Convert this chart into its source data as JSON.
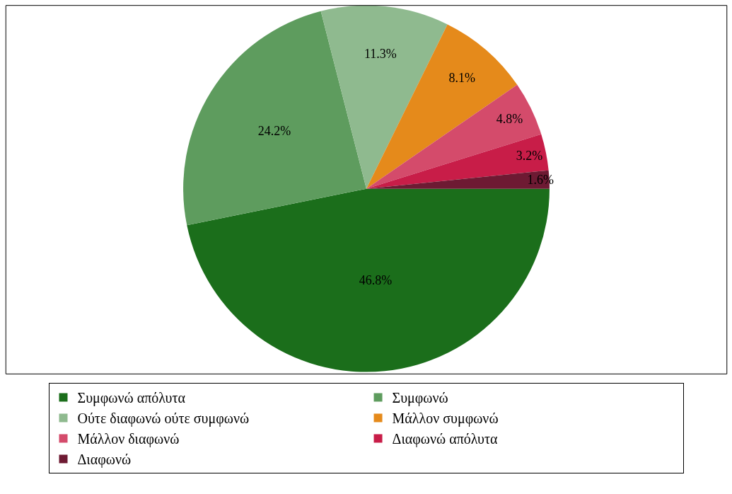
{
  "chart_data": {
    "type": "pie",
    "categories": [
      "Συμφωνώ απόλυτα",
      "Συμφωνώ",
      "Ούτε διαφωνώ ούτε συμφωνώ",
      "Μάλλον συμφωνώ",
      "Μάλλον διαφωνώ",
      "Διαφωνώ απόλυτα",
      "Διαφωνώ"
    ],
    "values": [
      46.8,
      24.2,
      11.3,
      8.1,
      4.8,
      3.2,
      1.6
    ],
    "value_labels": [
      "46.8%",
      "24.2%",
      "11.3%",
      "8.1%",
      "4.8%",
      "3.2%",
      "1.6%"
    ],
    "colors": [
      "#1b6e1b",
      "#5e9c5e",
      "#8fba8f",
      "#e58a1b",
      "#d44b6b",
      "#c81d48",
      "#6e1a33"
    ],
    "legend": "bottom"
  }
}
